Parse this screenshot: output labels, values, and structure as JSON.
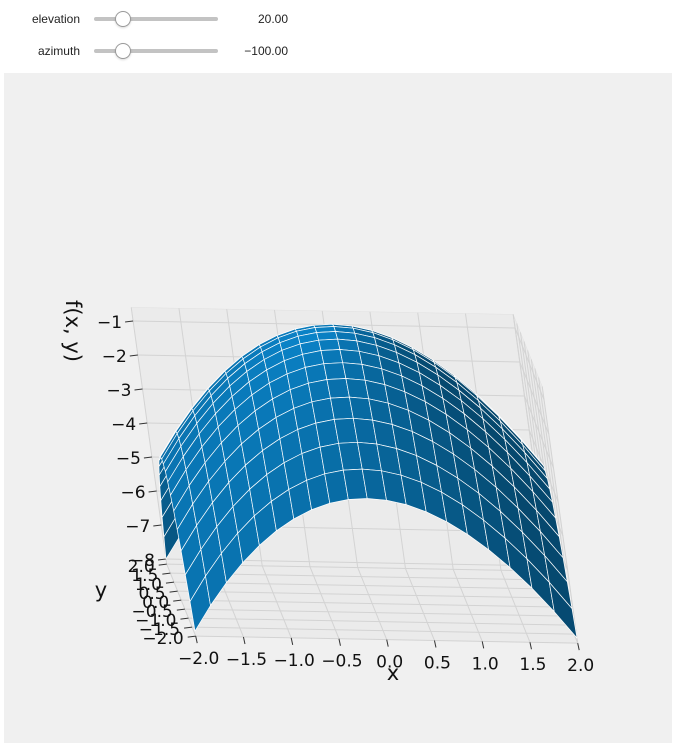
{
  "controls": {
    "elevation": {
      "label": "elevation",
      "value": 20,
      "display": "20.00",
      "min": 0,
      "max": 90
    },
    "azimuth": {
      "label": "azimuth",
      "value": -100,
      "display": "−100.00",
      "min": -180,
      "max": 180
    }
  },
  "chart_data": {
    "type": "surface",
    "function": "f(x, y) = -(x^2 + y^2)",
    "xlabel": "x",
    "ylabel": "y",
    "zlabel": "f(x, y)",
    "xlim": [
      -2.0,
      2.0
    ],
    "ylim": [
      -2.0,
      2.0
    ],
    "zlim": [
      -8,
      -1
    ],
    "x_ticks": [
      "−2.0",
      "−1.5",
      "−1.0",
      "−0.5",
      "0.0",
      "0.5",
      "1.0",
      "1.5",
      "2.0"
    ],
    "y_ticks": [
      "−2.0",
      "−1.5",
      "−1.0",
      "−0.5",
      "0.0",
      "0.5",
      "1.0",
      "1.5",
      "2.0"
    ],
    "z_ticks": [
      "−1",
      "−2",
      "−3",
      "−4",
      "−5",
      "−6",
      "−7",
      "−8"
    ],
    "surface_color": "#0a83c8",
    "edge_color": "#ffffff",
    "pane_color": "#f0f0f0",
    "grid": true
  }
}
